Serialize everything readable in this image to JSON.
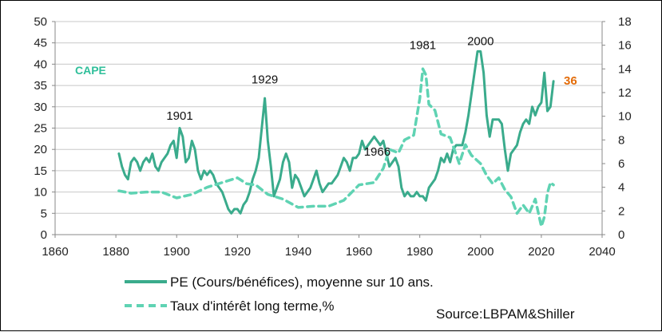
{
  "chart_data": {
    "type": "line",
    "xlim": [
      1860,
      2040
    ],
    "x_ticks": [
      1860,
      1880,
      1900,
      1920,
      1940,
      1960,
      1980,
      2000,
      2020,
      2040
    ],
    "y_left": {
      "lim": [
        0,
        50
      ],
      "ticks": [
        0,
        5,
        10,
        15,
        20,
        25,
        30,
        35,
        40,
        45,
        50
      ]
    },
    "y_right": {
      "lim": [
        0,
        18
      ],
      "ticks": [
        0,
        2,
        4,
        6,
        8,
        10,
        12,
        14,
        16,
        18
      ]
    },
    "grid": true,
    "series": [
      {
        "name": "PE (Cours/benefices), moyenne sur 10 ans.",
        "legend_label": "PE (Cours/bénéfices), moyenne sur 10 ans.",
        "axis": "left",
        "style": "solid",
        "color": "#3aab8c",
        "x": [
          1881,
          1882,
          1883,
          1884,
          1885,
          1886,
          1887,
          1888,
          1889,
          1890,
          1891,
          1892,
          1893,
          1894,
          1895,
          1896,
          1897,
          1898,
          1899,
          1900,
          1901,
          1902,
          1903,
          1904,
          1905,
          1906,
          1907,
          1908,
          1909,
          1910,
          1911,
          1912,
          1913,
          1914,
          1915,
          1916,
          1917,
          1918,
          1919,
          1920,
          1921,
          1922,
          1923,
          1924,
          1925,
          1926,
          1927,
          1928,
          1929,
          1930,
          1931,
          1932,
          1933,
          1934,
          1935,
          1936,
          1937,
          1938,
          1939,
          1940,
          1941,
          1942,
          1943,
          1944,
          1945,
          1946,
          1947,
          1948,
          1949,
          1950,
          1951,
          1952,
          1953,
          1954,
          1955,
          1956,
          1957,
          1958,
          1959,
          1960,
          1961,
          1962,
          1963,
          1964,
          1965,
          1966,
          1967,
          1968,
          1969,
          1970,
          1971,
          1972,
          1973,
          1974,
          1975,
          1976,
          1977,
          1978,
          1979,
          1980,
          1981,
          1982,
          1983,
          1984,
          1985,
          1986,
          1987,
          1988,
          1989,
          1990,
          1991,
          1992,
          1993,
          1994,
          1995,
          1996,
          1997,
          1998,
          1999,
          2000,
          2001,
          2002,
          2003,
          2004,
          2005,
          2006,
          2007,
          2008,
          2009,
          2010,
          2011,
          2012,
          2013,
          2014,
          2015,
          2016,
          2017,
          2018,
          2019,
          2020,
          2021,
          2022,
          2023,
          2024
        ],
        "values": [
          19,
          16,
          14,
          13,
          17,
          18,
          17,
          15,
          17,
          18,
          17,
          19,
          16,
          15,
          17,
          18,
          19,
          21,
          22,
          18,
          25,
          23,
          17,
          18,
          22,
          20,
          15,
          13,
          15,
          14,
          15,
          14,
          12,
          11,
          10,
          8,
          6,
          5,
          6,
          6,
          5,
          7,
          8,
          10,
          13,
          15,
          18,
          25,
          32,
          22,
          16,
          9,
          11,
          13,
          17,
          19,
          17,
          11,
          14,
          13,
          11,
          9,
          10,
          11,
          13,
          15,
          12,
          10,
          11,
          12,
          12,
          13,
          14,
          16,
          18,
          17,
          15,
          18,
          18,
          19,
          22,
          20,
          21,
          22,
          23,
          22,
          21,
          22,
          19,
          16,
          17,
          18,
          16,
          11,
          9,
          10,
          9,
          9,
          10,
          9,
          9,
          8,
          11,
          12,
          13,
          15,
          18,
          17,
          19,
          17,
          20,
          21,
          21,
          21,
          24,
          28,
          33,
          38,
          43,
          43,
          38,
          28,
          23,
          27,
          27,
          27,
          26,
          20,
          15,
          19,
          20,
          21,
          24,
          26,
          27,
          26,
          30,
          28,
          30,
          31,
          38,
          29,
          30,
          36
        ]
      },
      {
        "name": "Taux d'interet long terme,%",
        "legend_label": "Taux d'intérêt long terme,%",
        "axis": "right",
        "style": "dashed",
        "color": "#5fd3b3",
        "x": [
          1881,
          1885,
          1890,
          1895,
          1900,
          1905,
          1910,
          1915,
          1920,
          1923,
          1926,
          1930,
          1935,
          1940,
          1945,
          1950,
          1955,
          1960,
          1965,
          1968,
          1970,
          1973,
          1975,
          1978,
          1980,
          1981,
          1982,
          1983,
          1985,
          1987,
          1990,
          1993,
          1995,
          1997,
          2000,
          2002,
          2004,
          2006,
          2008,
          2010,
          2012,
          2014,
          2016,
          2018,
          2020,
          2021,
          2022,
          2023,
          2024
        ],
        "values": [
          3.7,
          3.5,
          3.6,
          3.6,
          3.1,
          3.4,
          4.0,
          4.4,
          4.8,
          4.3,
          4.2,
          3.4,
          3.0,
          2.3,
          2.4,
          2.4,
          2.9,
          4.2,
          4.4,
          5.6,
          7.2,
          6.9,
          8.0,
          8.4,
          11.5,
          14.0,
          13.5,
          11.0,
          10.5,
          8.5,
          8.2,
          6.0,
          7.6,
          6.7,
          6.0,
          5.0,
          4.3,
          4.8,
          3.8,
          3.2,
          1.8,
          2.5,
          1.8,
          3.0,
          0.7,
          1.5,
          3.5,
          4.4,
          4.2
        ]
      }
    ],
    "annotations": [
      {
        "text": "1901",
        "x": 1901,
        "y": 27
      },
      {
        "text": "1929",
        "x": 1929,
        "y": 35.5
      },
      {
        "text": "1966",
        "x": 1966,
        "y": 18.5
      },
      {
        "text": "1981",
        "x": 1981,
        "y": 43.5
      },
      {
        "text": "2000",
        "x": 2000,
        "y": 44.5
      }
    ],
    "cape_label": "CAPE",
    "last_value_label": "36",
    "source": "Source:LBPAM&Shiller"
  },
  "colors": {
    "pe": "#3aab8c",
    "rate": "#5fd3b3",
    "cape": "#2fbf9a",
    "last": "#e36c09",
    "grid": "#c8c8c8"
  }
}
